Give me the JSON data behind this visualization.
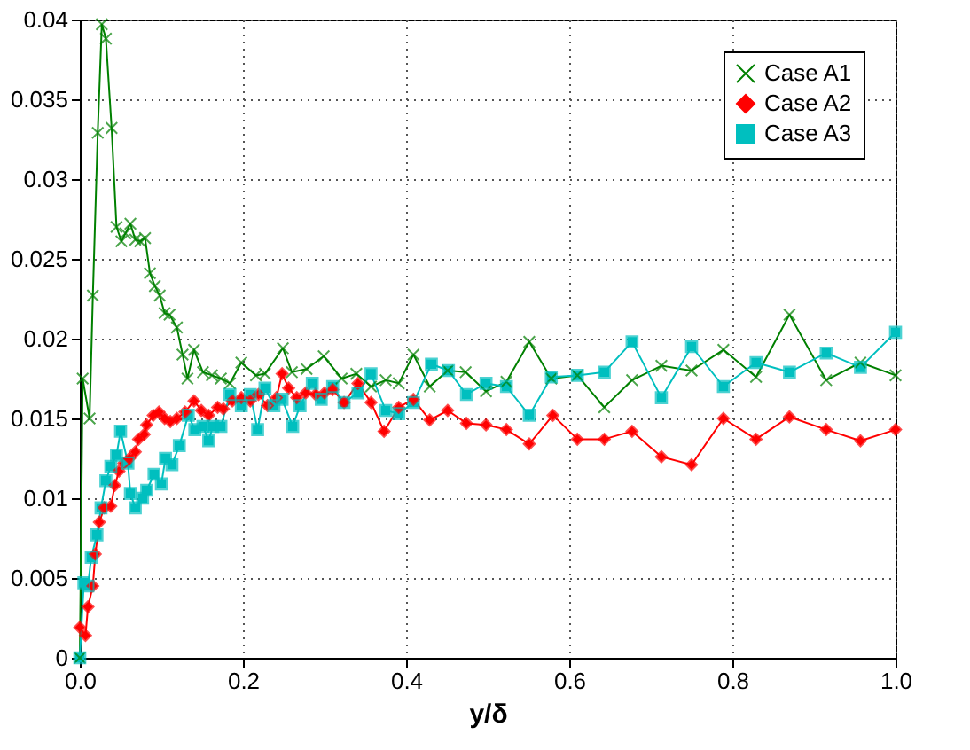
{
  "chart_data": {
    "type": "line",
    "xlabel": "y/δ",
    "xlim": [
      0,
      1
    ],
    "ylim": [
      0,
      0.04
    ],
    "xticks": [
      {
        "value": 0,
        "label": "0.0"
      },
      {
        "value": 0.2,
        "label": "0.2"
      },
      {
        "value": 0.4,
        "label": "0.4"
      },
      {
        "value": 0.6,
        "label": "0.6"
      },
      {
        "value": 0.8,
        "label": "0.8"
      },
      {
        "value": 1,
        "label": "1.0"
      }
    ],
    "yticks": [
      0,
      0.005,
      0.01,
      0.015,
      0.02,
      0.025,
      0.03,
      0.035,
      0.04
    ],
    "grid": true,
    "legend": "top right",
    "line_style": "solid",
    "series": [
      {
        "name": "Case A1",
        "color": "#008000",
        "marker": "cross",
        "x": [
          0,
          0.0035,
          0.012,
          0.016,
          0.022,
          0.027,
          0.032,
          0.039,
          0.045,
          0.051,
          0.056,
          0.062,
          0.068,
          0.074,
          0.08,
          0.086,
          0.092,
          0.098,
          0.104,
          0.11,
          0.119,
          0.126,
          0.132,
          0.14,
          0.151,
          0.162,
          0.173,
          0.184,
          0.198,
          0.216,
          0.227,
          0.249,
          0.26,
          0.278,
          0.299,
          0.321,
          0.339,
          0.357,
          0.375,
          0.391,
          0.409,
          0.429,
          0.451,
          0.473,
          0.498,
          0.523,
          0.551,
          0.578,
          0.61,
          0.643,
          0.677,
          0.713,
          0.75,
          0.789,
          0.829,
          0.87,
          0.915,
          0.957,
          1.0
        ],
        "values": [
          0,
          0.0175,
          0.015,
          0.0227,
          0.0329,
          0.0397,
          0.0388,
          0.0332,
          0.027,
          0.0261,
          0.0266,
          0.0272,
          0.0262,
          0.0261,
          0.0263,
          0.0241,
          0.0233,
          0.0227,
          0.0216,
          0.0215,
          0.0207,
          0.019,
          0.0175,
          0.0193,
          0.0179,
          0.0177,
          0.0175,
          0.0172,
          0.0185,
          0.0177,
          0.0178,
          0.0194,
          0.0179,
          0.0181,
          0.0189,
          0.0175,
          0.0178,
          0.017,
          0.0174,
          0.0172,
          0.019,
          0.017,
          0.018,
          0.0179,
          0.0167,
          0.0173,
          0.0198,
          0.0175,
          0.0177,
          0.0157,
          0.0174,
          0.0183,
          0.018,
          0.0193,
          0.0176,
          0.0215,
          0.0174,
          0.0185,
          0.0177
        ]
      },
      {
        "name": "Case A2",
        "color": "#ff0000",
        "marker": "diamond",
        "x": [
          0,
          0.007,
          0.01,
          0.016,
          0.019,
          0.024,
          0.03,
          0.038,
          0.043,
          0.048,
          0.054,
          0.061,
          0.068,
          0.072,
          0.079,
          0.082,
          0.09,
          0.097,
          0.104,
          0.111,
          0.119,
          0.129,
          0.14,
          0.149,
          0.158,
          0.169,
          0.176,
          0.187,
          0.198,
          0.209,
          0.219,
          0.23,
          0.241,
          0.248,
          0.256,
          0.266,
          0.277,
          0.289,
          0.3,
          0.31,
          0.324,
          0.341,
          0.357,
          0.373,
          0.391,
          0.409,
          0.429,
          0.451,
          0.474,
          0.498,
          0.523,
          0.551,
          0.58,
          0.61,
          0.643,
          0.677,
          0.713,
          0.75,
          0.789,
          0.829,
          0.87,
          0.915,
          0.957,
          1.0
        ],
        "values": [
          0.0019,
          0.0014,
          0.0032,
          0.0045,
          0.0065,
          0.0085,
          0.0094,
          0.0095,
          0.0108,
          0.0117,
          0.0122,
          0.0125,
          0.0129,
          0.0137,
          0.014,
          0.0146,
          0.0152,
          0.0154,
          0.015,
          0.0148,
          0.015,
          0.0154,
          0.0161,
          0.0155,
          0.0152,
          0.0157,
          0.0156,
          0.0161,
          0.0163,
          0.0161,
          0.0165,
          0.0158,
          0.0163,
          0.0178,
          0.0169,
          0.0163,
          0.0166,
          0.0165,
          0.0166,
          0.0168,
          0.016,
          0.0172,
          0.016,
          0.0142,
          0.0157,
          0.0162,
          0.0149,
          0.0155,
          0.0147,
          0.0146,
          0.0143,
          0.0134,
          0.0152,
          0.0137,
          0.0137,
          0.0142,
          0.0126,
          0.0121,
          0.015,
          0.0137,
          0.0151,
          0.0143,
          0.0136,
          0.0143
        ]
      },
      {
        "name": "Case A3",
        "color": "#00bfbf",
        "marker": "square",
        "x": [
          0,
          0.005,
          0.01,
          0.014,
          0.021,
          0.026,
          0.032,
          0.038,
          0.045,
          0.05,
          0.059,
          0.062,
          0.068,
          0.077,
          0.082,
          0.091,
          0.1,
          0.105,
          0.113,
          0.122,
          0.133,
          0.141,
          0.151,
          0.158,
          0.163,
          0.173,
          0.184,
          0.198,
          0.209,
          0.218,
          0.227,
          0.238,
          0.248,
          0.261,
          0.27,
          0.285,
          0.296,
          0.31,
          0.324,
          0.341,
          0.357,
          0.375,
          0.391,
          0.409,
          0.431,
          0.452,
          0.474,
          0.498,
          0.523,
          0.551,
          0.578,
          0.61,
          0.643,
          0.677,
          0.713,
          0.75,
          0.789,
          0.829,
          0.87,
          0.915,
          0.957,
          1.0
        ],
        "values": [
          0,
          0.0047,
          0.0045,
          0.0063,
          0.0077,
          0.0094,
          0.0111,
          0.012,
          0.0127,
          0.0142,
          0.0122,
          0.0103,
          0.0094,
          0.01,
          0.0105,
          0.0115,
          0.0109,
          0.0125,
          0.0121,
          0.0133,
          0.0152,
          0.0143,
          0.0145,
          0.0136,
          0.0145,
          0.0145,
          0.0165,
          0.0158,
          0.0165,
          0.0143,
          0.0169,
          0.0158,
          0.0162,
          0.0145,
          0.0158,
          0.0172,
          0.0162,
          0.017,
          0.016,
          0.0166,
          0.0178,
          0.0155,
          0.0153,
          0.016,
          0.0184,
          0.018,
          0.0165,
          0.0172,
          0.017,
          0.0152,
          0.0176,
          0.0177,
          0.0179,
          0.0198,
          0.0163,
          0.0195,
          0.017,
          0.0185,
          0.0179,
          0.0191,
          0.0182,
          0.0204
        ]
      }
    ]
  }
}
